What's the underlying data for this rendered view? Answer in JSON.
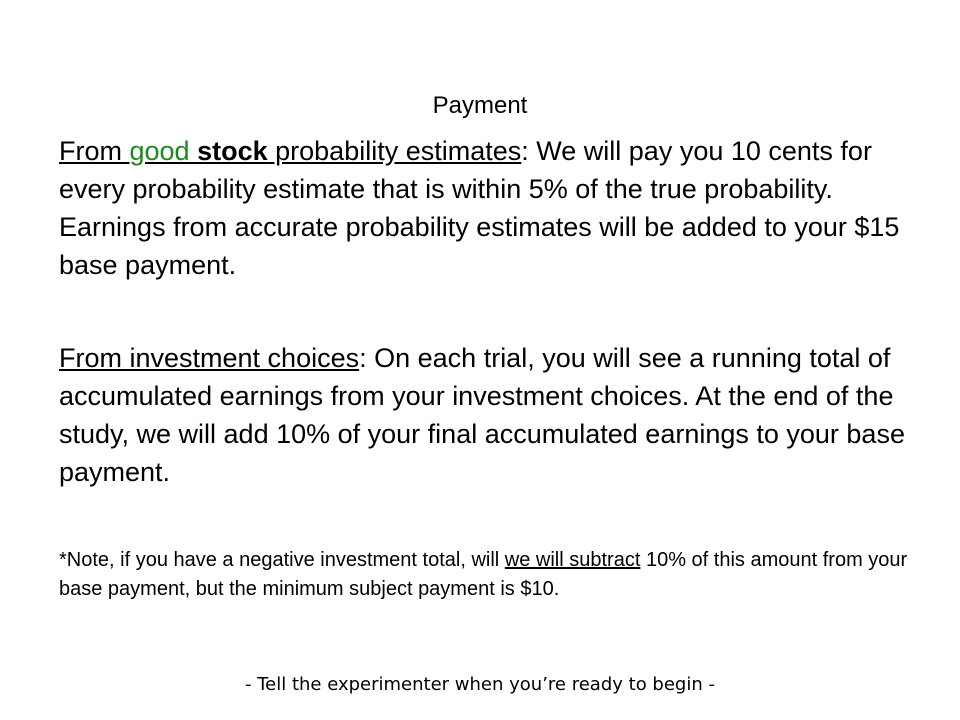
{
  "title": "Payment",
  "para1": {
    "lead_from": "From ",
    "lead_good": "good",
    "lead_space": " ",
    "lead_stock": "stock",
    "lead_rest": " probability estimates",
    "colon": ":",
    "body": " We will pay you 10 cents for every probability estimate that is within 5% of the true probability. Earnings from accurate probability estimates will be added to your $15 base payment."
  },
  "para2": {
    "lead": "From investment choices",
    "colon": ":",
    "body": " On each trial, you will see a running total of accumulated earnings from your investment choices. At the end of the study, we will add 10% of your final accumulated earnings to your base payment."
  },
  "note": {
    "before": "*Note, if you have a negative investment total, will ",
    "underlined": "we will subtract",
    "after": " 10% of this amount from your base payment, but the minimum subject payment is $10."
  },
  "footer": "- Tell the experimenter when you’re ready to begin -",
  "colors": {
    "good": "#1a8a1a",
    "text": "#000000",
    "background": "#ffffff"
  }
}
